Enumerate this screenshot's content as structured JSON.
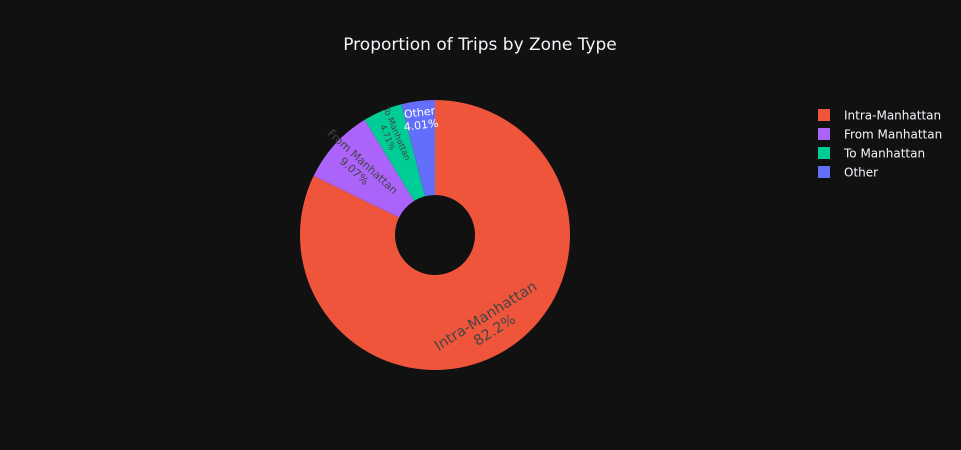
{
  "chart_data": {
    "type": "pie",
    "title": "Proportion of Trips by Zone Type",
    "hole": true,
    "legend_position": "top-right",
    "background": "#111111",
    "slices": [
      {
        "label": "Intra-Manhattan",
        "value": 82.2,
        "display": "82.2%",
        "color": "#EF553B",
        "text_color": "#444444"
      },
      {
        "label": "From Manhattan",
        "value": 9.07,
        "display": "9.07%",
        "color": "#AB63FA",
        "text_color": "#444444"
      },
      {
        "label": "To Manhattan",
        "value": 4.71,
        "display": "4.71%",
        "color": "#00CC96",
        "text_color": "#444444"
      },
      {
        "label": "Other",
        "value": 4.01,
        "display": "4.01%",
        "color": "#636EFA",
        "text_color": "#FFFFFF"
      }
    ]
  }
}
